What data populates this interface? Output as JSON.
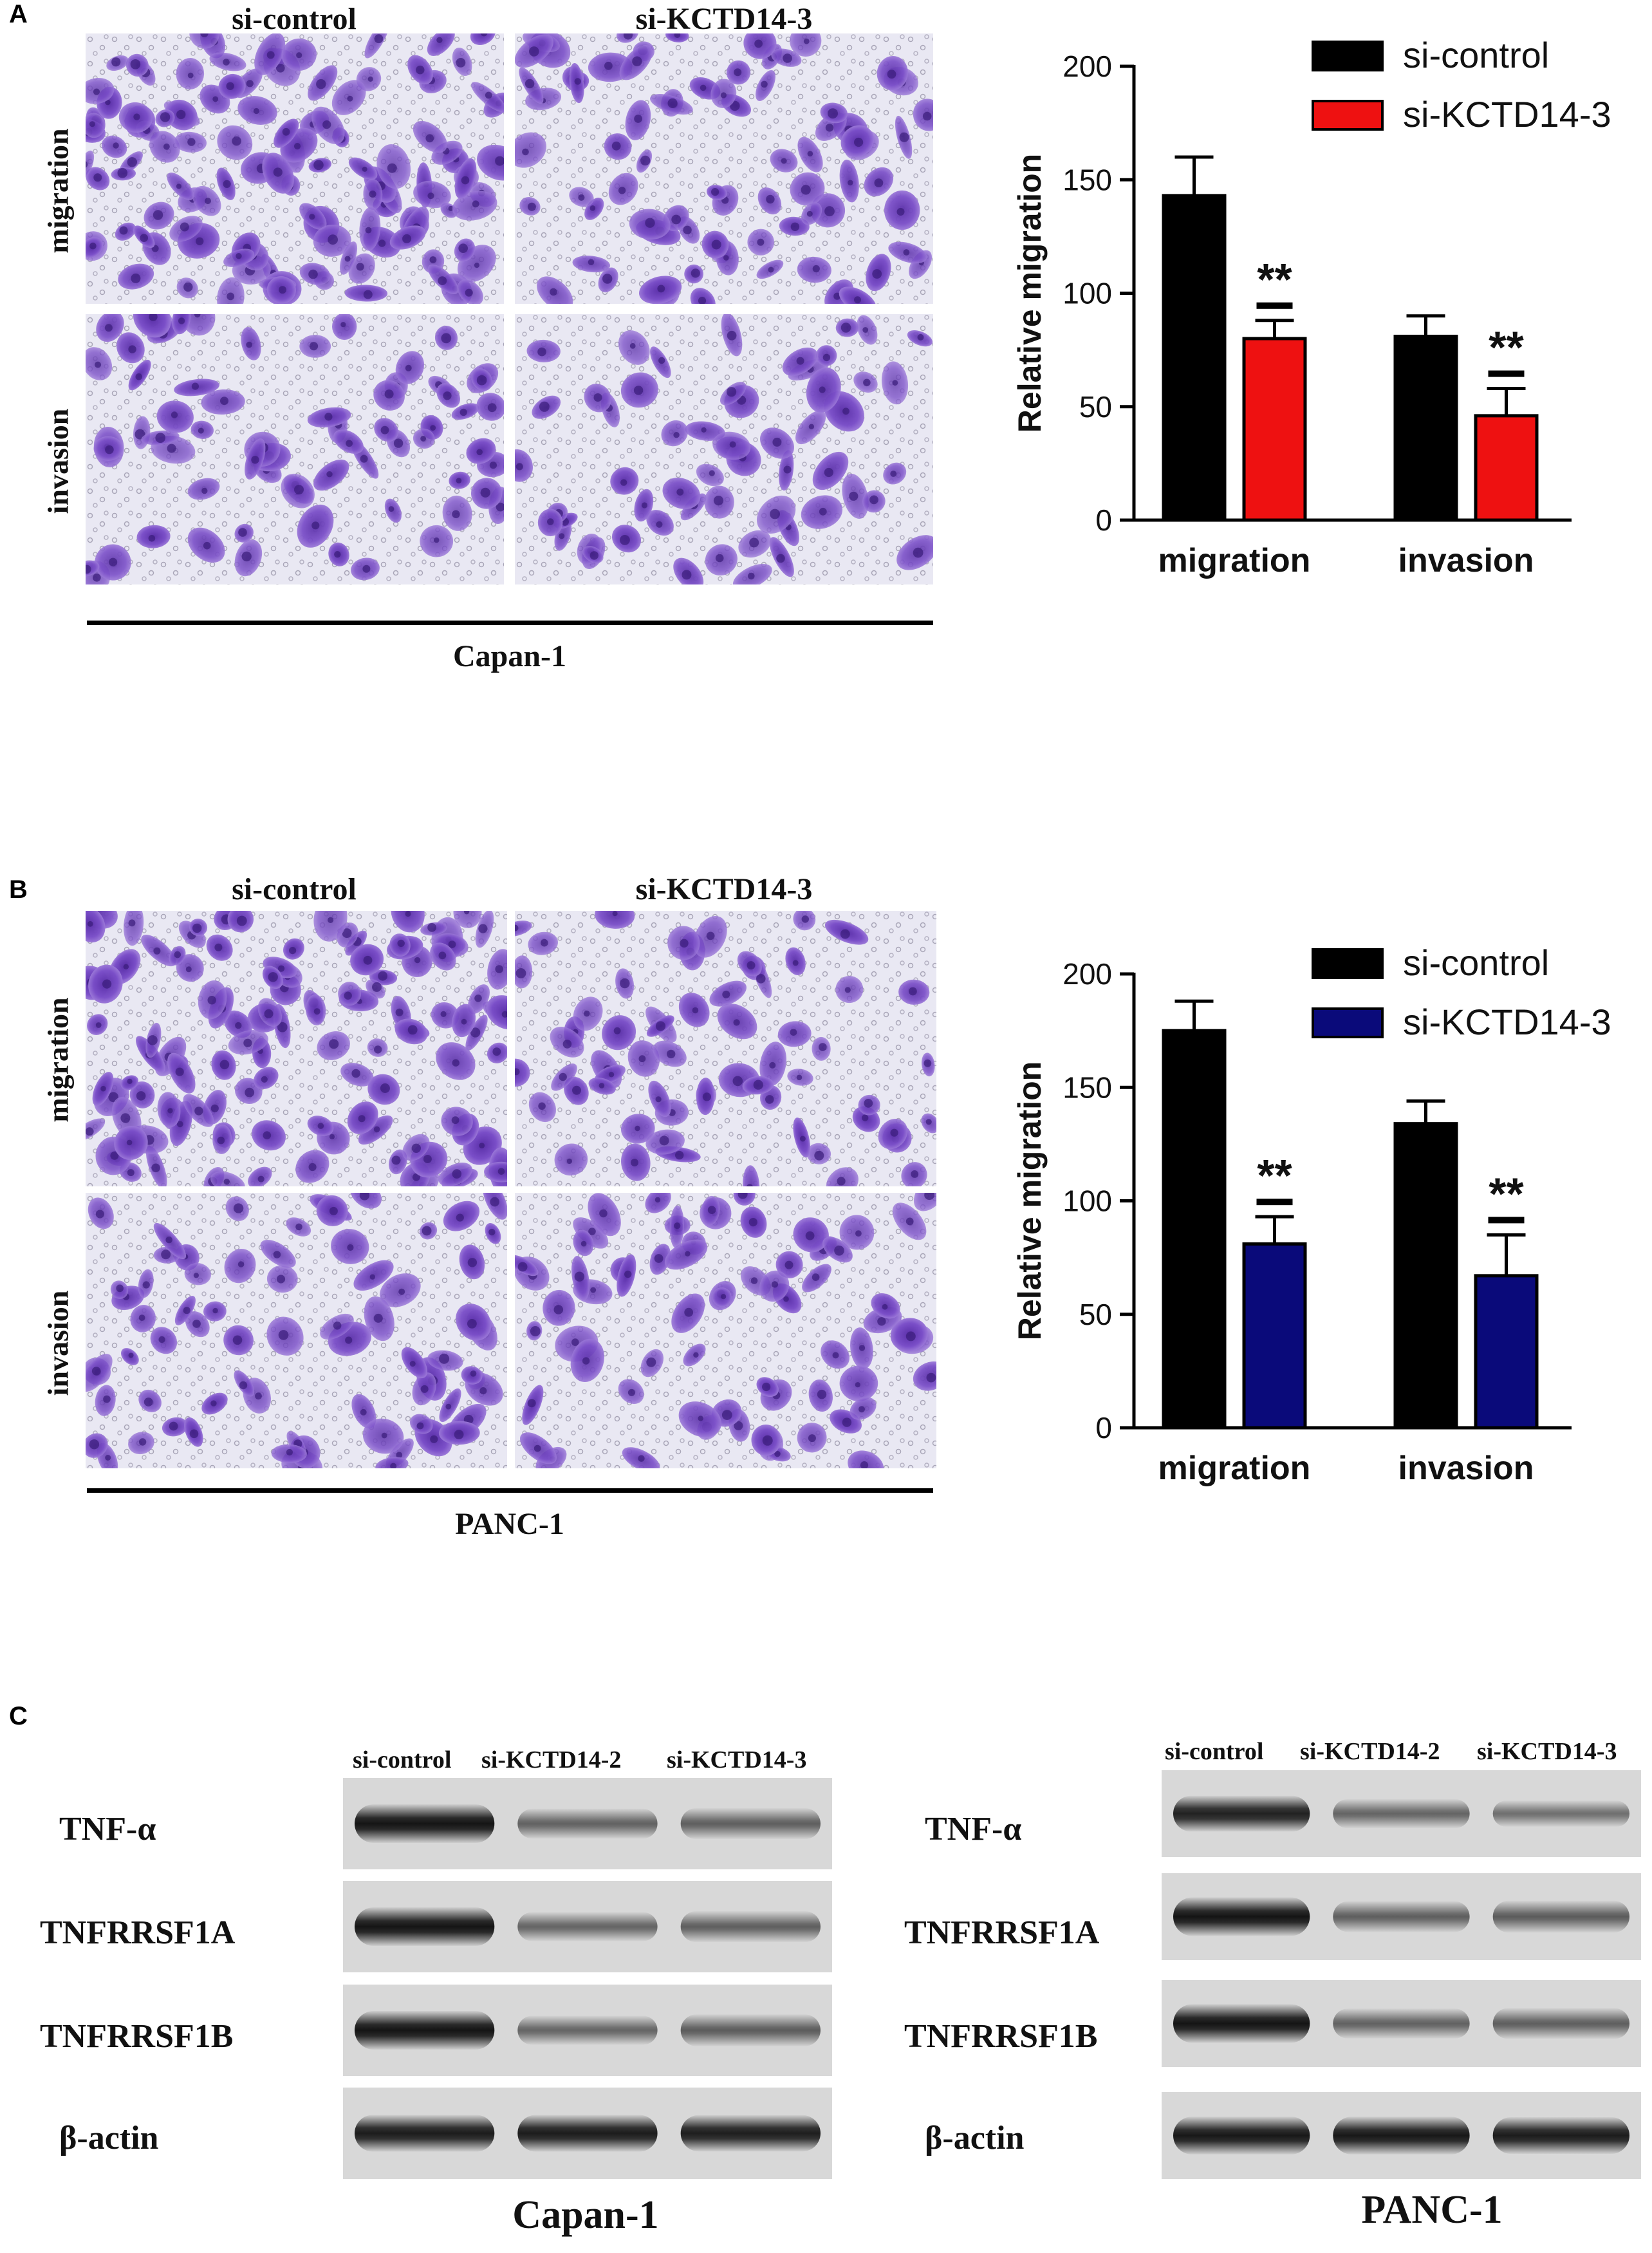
{
  "panels": {
    "A": {
      "letter": "A",
      "col_labels": [
        "si-control",
        "si-KCTD14-3"
      ],
      "row_labels": [
        "migration",
        "invasion"
      ],
      "cell_line": "Capan-1",
      "colors": {
        "control": "#000000",
        "knockdown": "#ee1111"
      }
    },
    "B": {
      "letter": "B",
      "col_labels": [
        "si-control",
        "si-KCTD14-3"
      ],
      "row_labels": [
        "migration",
        "invasion"
      ],
      "cell_line": "PANC-1",
      "colors": {
        "control": "#000000",
        "knockdown": "#0a0a7a"
      }
    },
    "C": {
      "letter": "C",
      "blots": [
        {
          "lanes": [
            "si-control",
            "si-KCTD14-2",
            "si-KCTD14-3"
          ],
          "proteins": [
            "TNF-α",
            "TNFRRSF1A",
            "TNFRRSF1B",
            "β-actin"
          ],
          "cell_line": "Capan-1"
        },
        {
          "lanes": [
            "si-control",
            "si-KCTD14-2",
            "si-KCTD14-3"
          ],
          "proteins": [
            "TNF-α",
            "TNFRRSF1A",
            "TNFRRSF1B",
            "β-actin"
          ],
          "cell_line": "PANC-1"
        }
      ]
    }
  },
  "chart_data": [
    {
      "type": "bar",
      "categories": [
        "migration",
        "invasion"
      ],
      "series": [
        {
          "name": "si-control",
          "values": [
            143,
            81
          ],
          "errors": [
            17,
            9
          ]
        },
        {
          "name": "si-KCTD14-3",
          "values": [
            80,
            46
          ],
          "errors": [
            8,
            12
          ]
        }
      ],
      "significance": [
        "**",
        "**"
      ],
      "ylabel": "Relative migration",
      "ylim": [
        0,
        200
      ],
      "yticks": [
        0,
        50,
        100,
        150,
        200
      ],
      "legend": "top-right",
      "colors": [
        "#000000",
        "#ee1111"
      ]
    },
    {
      "type": "bar",
      "categories": [
        "migration",
        "invasion"
      ],
      "series": [
        {
          "name": "si-control",
          "values": [
            175,
            134
          ],
          "errors": [
            13,
            10
          ]
        },
        {
          "name": "si-KCTD14-3",
          "values": [
            81,
            67
          ],
          "errors": [
            12,
            18
          ]
        }
      ],
      "significance": [
        "**",
        "**"
      ],
      "ylabel": "Relative migration",
      "ylim": [
        0,
        200
      ],
      "yticks": [
        0,
        50,
        100,
        150,
        200
      ],
      "legend": "top-right",
      "colors": [
        "#000000",
        "#0a0a7a"
      ]
    }
  ]
}
